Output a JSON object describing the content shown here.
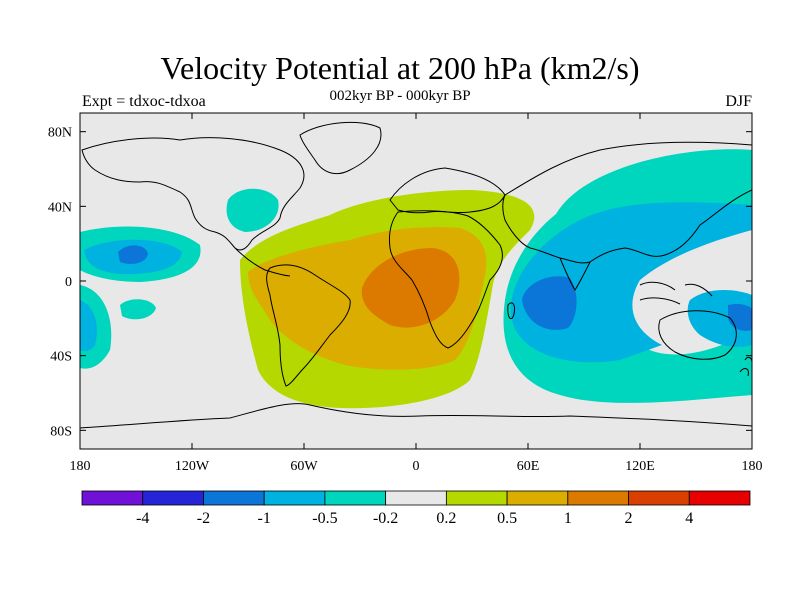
{
  "header": {
    "title": "Velocity Potential at 200 hPa (km2/s)",
    "subtitle": "002kyr BP - 000kyr BP",
    "left_label": "Expt = tdxoc-tdxoa",
    "right_label": "DJF"
  },
  "map": {
    "projection": "cylindrical-equidistant",
    "lon_range": [
      -180,
      180
    ],
    "lat_range": [
      -90,
      90
    ],
    "x_ticks": [
      {
        "value": -180,
        "label": "180"
      },
      {
        "value": -120,
        "label": "120W"
      },
      {
        "value": -60,
        "label": "60W"
      },
      {
        "value": 0,
        "label": "0"
      },
      {
        "value": 60,
        "label": "60E"
      },
      {
        "value": 120,
        "label": "120E"
      },
      {
        "value": 180,
        "label": "180"
      }
    ],
    "y_ticks": [
      {
        "value": 80,
        "label": "80N"
      },
      {
        "value": 40,
        "label": "40N"
      },
      {
        "value": 0,
        "label": "0"
      },
      {
        "value": -40,
        "label": "40S"
      },
      {
        "value": -80,
        "label": "80S"
      }
    ],
    "background_color": "#e8e8e8",
    "coastline_color": "#000000"
  },
  "colorbar": {
    "colors": [
      "#7011d8",
      "#2524d6",
      "#0b76d8",
      "#00b2e0",
      "#00d6bd",
      "#e8e8e8",
      "#b5d800",
      "#dbad00",
      "#dc7a00",
      "#d94000",
      "#e60000"
    ],
    "labels": [
      "-4",
      "-2",
      "-1",
      "-0.5",
      "-0.2",
      "0.2",
      "0.5",
      "1",
      "2",
      "4"
    ]
  }
}
